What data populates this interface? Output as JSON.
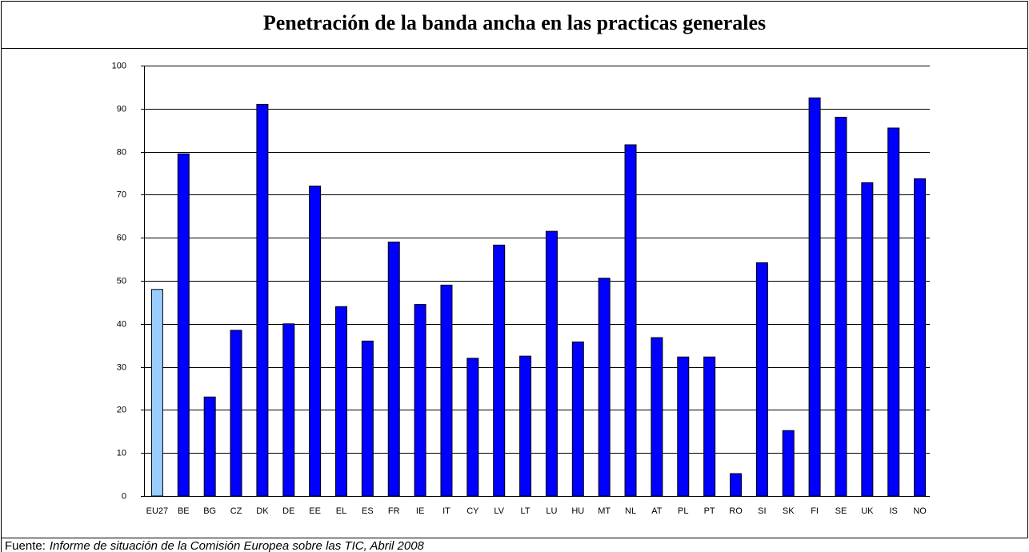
{
  "chart_data": {
    "type": "bar",
    "title": "Penetración de la banda ancha en las practicas generales",
    "source_label": "Fuente:",
    "source_text": "Informe de situación de la Comisión Europea sobre las TIC, Abril 2008",
    "categories": [
      "EU27",
      "BE",
      "BG",
      "CZ",
      "DK",
      "DE",
      "EE",
      "EL",
      "ES",
      "FR",
      "IE",
      "IT",
      "CY",
      "LV",
      "LT",
      "LU",
      "HU",
      "MT",
      "NL",
      "AT",
      "PL",
      "PT",
      "RO",
      "SI",
      "SK",
      "FI",
      "SE",
      "UK",
      "IS",
      "NO"
    ],
    "values": [
      48,
      79.5,
      23,
      38.5,
      91,
      40,
      72,
      44,
      36,
      59,
      44.5,
      49,
      32,
      58.3,
      32.5,
      61.5,
      35.8,
      50.6,
      81.6,
      36.8,
      32.3,
      32.3,
      5.2,
      54.2,
      15.2,
      92.5,
      88,
      72.8,
      85.5,
      73.7
    ],
    "colors": [
      "#99ccff",
      "#0000ff",
      "#0000ff",
      "#0000ff",
      "#0000ff",
      "#0000ff",
      "#0000ff",
      "#0000ff",
      "#0000ff",
      "#0000ff",
      "#0000ff",
      "#0000ff",
      "#0000ff",
      "#0000ff",
      "#0000ff",
      "#0000ff",
      "#0000ff",
      "#0000ff",
      "#0000ff",
      "#0000ff",
      "#0000ff",
      "#0000ff",
      "#0000ff",
      "#0000ff",
      "#0000ff",
      "#0000ff",
      "#0000ff",
      "#0000ff",
      "#0000ff",
      "#0000ff"
    ],
    "ylim": [
      0,
      100
    ],
    "yticks": [
      0,
      10,
      20,
      30,
      40,
      50,
      60,
      70,
      80,
      90,
      100
    ],
    "grid": true
  }
}
